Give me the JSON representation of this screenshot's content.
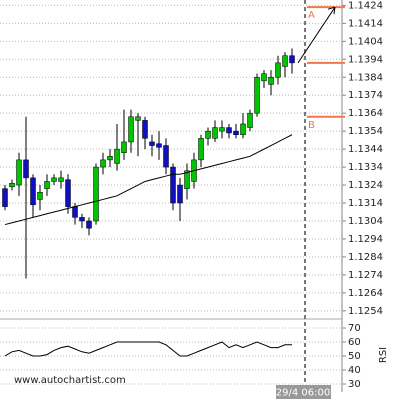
{
  "chart_data": [
    {
      "type": "candlestick",
      "up_color": "#00c400",
      "down_color": "#1010c0",
      "open": [
        1.1322,
        1.1323,
        1.1324,
        1.1338,
        1.1328,
        1.1316,
        1.1322,
        1.1326,
        1.1326,
        1.1327,
        1.1312,
        1.1306,
        1.1304,
        1.1304,
        1.1334,
        1.1338,
        1.1336,
        1.1342,
        1.1348,
        1.136,
        1.136,
        1.1348,
        1.1347,
        1.1346,
        1.1334,
        1.1324,
        1.1322,
        1.1326,
        1.1338,
        1.135,
        1.135,
        1.1354,
        1.1356,
        1.1354,
        1.1352,
        1.1356,
        1.1364,
        1.1382,
        1.138,
        1.1384,
        1.139,
        1.1396
      ],
      "high": [
        1.1324,
        1.1327,
        1.1342,
        1.1362,
        1.133,
        1.1324,
        1.133,
        1.133,
        1.1332,
        1.133,
        1.1314,
        1.1308,
        1.1306,
        1.1336,
        1.1342,
        1.1344,
        1.1358,
        1.1366,
        1.1366,
        1.1364,
        1.1362,
        1.1352,
        1.1354,
        1.135,
        1.1336,
        1.1328,
        1.1336,
        1.1342,
        1.1352,
        1.1356,
        1.136,
        1.136,
        1.1358,
        1.1358,
        1.1364,
        1.1366,
        1.1386,
        1.1388,
        1.1388,
        1.1396,
        1.1398,
        1.14
      ],
      "low": [
        1.131,
        1.1321,
        1.1318,
        1.1272,
        1.1306,
        1.131,
        1.1318,
        1.1324,
        1.1322,
        1.1308,
        1.1302,
        1.13,
        1.1296,
        1.1302,
        1.133,
        1.1334,
        1.1332,
        1.1338,
        1.1342,
        1.134,
        1.1344,
        1.134,
        1.1338,
        1.133,
        1.131,
        1.1304,
        1.1316,
        1.1322,
        1.1334,
        1.1346,
        1.1348,
        1.135,
        1.135,
        1.135,
        1.135,
        1.1354,
        1.1362,
        1.1378,
        1.1374,
        1.138,
        1.1384,
        1.1386
      ],
      "close": [
        1.1312,
        1.1325,
        1.1338,
        1.1328,
        1.1313,
        1.132,
        1.1326,
        1.1328,
        1.1328,
        1.1312,
        1.1306,
        1.1304,
        1.13,
        1.1334,
        1.1338,
        1.134,
        1.1344,
        1.1348,
        1.1362,
        1.1362,
        1.135,
        1.1346,
        1.1345,
        1.1334,
        1.1314,
        1.1314,
        1.1332,
        1.1338,
        1.135,
        1.1354,
        1.1356,
        1.1356,
        1.1353,
        1.1352,
        1.1358,
        1.1364,
        1.1384,
        1.1386,
        1.1384,
        1.1392,
        1.1396,
        1.1392
      ],
      "moving_average": {
        "color": "#000000",
        "values": [
          1.1302,
          1.1303,
          1.1304,
          1.1305,
          1.1306,
          1.1307,
          1.1308,
          1.1309,
          1.131,
          1.1311,
          1.1312,
          1.1313,
          1.1314,
          1.1315,
          1.1316,
          1.1317,
          1.1318,
          1.132,
          1.1322,
          1.1324,
          1.1326,
          1.1327,
          1.1328,
          1.1329,
          1.133,
          1.133,
          1.1331,
          1.1332,
          1.1333,
          1.1334,
          1.1335,
          1.1336,
          1.1337,
          1.1338,
          1.1339,
          1.134,
          1.1342,
          1.1344,
          1.1346,
          1.1348,
          1.135,
          1.1352
        ]
      },
      "levels": [
        {
          "label": "A",
          "value": 1.1423,
          "color": "#f07848"
        },
        {
          "value": 1.1392,
          "color": "#f07848"
        },
        {
          "label": "B",
          "value": 1.1362,
          "color": "#f07848"
        }
      ],
      "ylim": [
        1.125,
        1.1427
      ],
      "yticks": [
        1.1424,
        1.1414,
        1.1404,
        1.1394,
        1.1384,
        1.1374,
        1.1364,
        1.1354,
        1.1344,
        1.1334,
        1.1324,
        1.1314,
        1.1304,
        1.1294,
        1.1284,
        1.1274,
        1.1264,
        1.1254
      ],
      "grid": true,
      "x_label": "29/4 06:00",
      "watermark": "www.autochartist.com"
    },
    {
      "type": "line",
      "ylabel": "RSI",
      "color": "#000000",
      "values": [
        50,
        53,
        54,
        52,
        50,
        50,
        51,
        54,
        56,
        57,
        55,
        53,
        52,
        54,
        56,
        58,
        60,
        60,
        60,
        60,
        60,
        60,
        60,
        58,
        54,
        50,
        50,
        52,
        54,
        56,
        58,
        60,
        56,
        58,
        56,
        58,
        60,
        58,
        56,
        56,
        58,
        58
      ],
      "ylim": [
        25,
        75
      ],
      "yticks": [
        70,
        60,
        50,
        40,
        30
      ],
      "grid": true
    }
  ]
}
